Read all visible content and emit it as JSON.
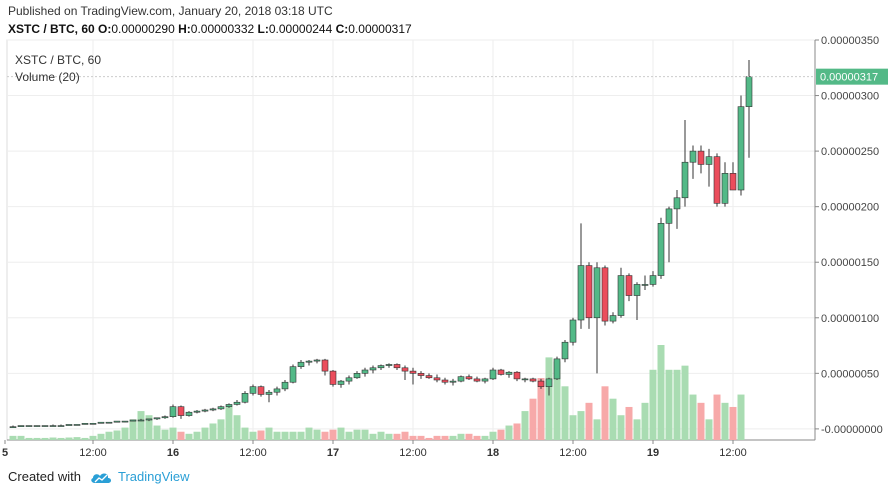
{
  "header": {
    "published": "Published on TradingView.com, January 20, 2018 03:18 UTC",
    "symbol": "XSTC / BTC, 60",
    "ohlc": [
      {
        "k": "O:",
        "v": "0.00000290"
      },
      {
        "k": "H:",
        "v": "0.00000332"
      },
      {
        "k": "L:",
        "v": "0.00000244"
      },
      {
        "k": "C:",
        "v": "0.00000317"
      }
    ]
  },
  "legend": {
    "title": "XSTC / BTC, 60",
    "volume": "Volume (20)"
  },
  "footer": {
    "created_with": "Created with",
    "brand": "TradingView"
  },
  "colors": {
    "up": "#53b987",
    "down": "#eb4d5c",
    "vol_up": "#a9dcb2",
    "vol_down": "#f7a9a9",
    "price_tag": "#53b987",
    "grid": "#eeeeee"
  },
  "chart_data": {
    "type": "candlestick",
    "title": "XSTC / BTC, 60",
    "ylim": [
      -1e-07,
      3.5e-06
    ],
    "y_ticks": [
      "0.00000350",
      "0.00000300",
      "0.00000250",
      "0.00000200",
      "0.00000150",
      "0.00000100",
      "0.00000050",
      "-0.00000000"
    ],
    "x_ticks": [
      {
        "i": -1,
        "label": "5"
      },
      {
        "i": 10,
        "label": "12:00"
      },
      {
        "i": 20,
        "label": "16"
      },
      {
        "i": 30,
        "label": "12:00"
      },
      {
        "i": 40,
        "label": "17"
      },
      {
        "i": 50,
        "label": "12:00"
      },
      {
        "i": 60,
        "label": "18"
      },
      {
        "i": 70,
        "label": "12:00"
      },
      {
        "i": 80,
        "label": "19"
      },
      {
        "i": 90,
        "label": "12:00"
      }
    ],
    "last_price": "0.00000317",
    "candles": [
      [
        2e-08,
        3e-08,
        2e-08,
        2e-08
      ],
      [
        2e-08,
        3e-08,
        2e-08,
        3e-08
      ],
      [
        3e-08,
        3e-08,
        2e-08,
        3e-08
      ],
      [
        3e-08,
        3e-08,
        2e-08,
        3e-08
      ],
      [
        3e-08,
        3e-08,
        2e-08,
        3e-08
      ],
      [
        3e-08,
        4e-08,
        3e-08,
        3e-08
      ],
      [
        3e-08,
        4e-08,
        3e-08,
        3e-08
      ],
      [
        3e-08,
        4e-08,
        3e-08,
        4e-08
      ],
      [
        4e-08,
        4e-08,
        3e-08,
        4e-08
      ],
      [
        4e-08,
        5e-08,
        4e-08,
        5e-08
      ],
      [
        5e-08,
        5e-08,
        4e-08,
        5e-08
      ],
      [
        5e-08,
        6e-08,
        5e-08,
        6e-08
      ],
      [
        6e-08,
        6e-08,
        5e-08,
        6e-08
      ],
      [
        6e-08,
        7e-08,
        6e-08,
        7e-08
      ],
      [
        7e-08,
        7e-08,
        6e-08,
        7e-08
      ],
      [
        7e-08,
        8e-08,
        7e-08,
        8e-08
      ],
      [
        8e-08,
        9e-08,
        7e-08,
        8e-08
      ],
      [
        8e-08,
        9e-08,
        7e-08,
        9e-08
      ],
      [
        9e-08,
        1e-07,
        8e-08,
        1e-07
      ],
      [
        1e-07,
        1.2e-07,
        9e-08,
        1.1e-07
      ],
      [
        1.1e-07,
        2.2e-07,
        1e-07,
        2e-07
      ],
      [
        2e-07,
        2.1e-07,
        9e-08,
        1.2e-07
      ],
      [
        1.2e-07,
        1.6e-07,
        1.1e-07,
        1.5e-07
      ],
      [
        1.5e-07,
        1.7e-07,
        1.4e-07,
        1.6e-07
      ],
      [
        1.6e-07,
        1.8e-07,
        1.5e-07,
        1.7e-07
      ],
      [
        1.7e-07,
        1.9e-07,
        1.6e-07,
        1.8e-07
      ],
      [
        1.8e-07,
        2.1e-07,
        1.7e-07,
        2e-07
      ],
      [
        2e-07,
        2.3e-07,
        1.9e-07,
        2.2e-07
      ],
      [
        2.2e-07,
        2.6e-07,
        2.1e-07,
        2.4e-07
      ],
      [
        2.4e-07,
        3.4e-07,
        2.3e-07,
        3.2e-07
      ],
      [
        3.2e-07,
        4e-07,
        3e-07,
        3.8e-07
      ],
      [
        3.8e-07,
        3.9e-07,
        2.9e-07,
        3.1e-07
      ],
      [
        3.1e-07,
        3.5e-07,
        2.4e-07,
        3.3e-07
      ],
      [
        3.3e-07,
        3.8e-07,
        3e-07,
        3.6e-07
      ],
      [
        3.6e-07,
        4.4e-07,
        3.4e-07,
        4.2e-07
      ],
      [
        4.2e-07,
        5.8e-07,
        4.1e-07,
        5.6e-07
      ],
      [
        5.6e-07,
        6.2e-07,
        5.4e-07,
        6e-07
      ],
      [
        6e-07,
        6.2e-07,
        5.7e-07,
        6.1e-07
      ],
      [
        6.1e-07,
        6.3e-07,
        5.9e-07,
        6.2e-07
      ],
      [
        6.2e-07,
        6.3e-07,
        4.8e-07,
        5.2e-07
      ],
      [
        5.2e-07,
        5.3e-07,
        3.8e-07,
        4e-07
      ],
      [
        4e-07,
        4.4e-07,
        3.7e-07,
        4.3e-07
      ],
      [
        4.3e-07,
        4.8e-07,
        4e-07,
        4.6e-07
      ],
      [
        4.6e-07,
        5.2e-07,
        4.5e-07,
        5e-07
      ],
      [
        5e-07,
        5.5e-07,
        4.7e-07,
        5.3e-07
      ],
      [
        5.3e-07,
        5.7e-07,
        5e-07,
        5.5e-07
      ],
      [
        5.5e-07,
        5.8e-07,
        5.3e-07,
        5.7e-07
      ],
      [
        5.7e-07,
        5.9e-07,
        5.5e-07,
        5.8e-07
      ],
      [
        5.8e-07,
        5.9e-07,
        5.3e-07,
        5.5e-07
      ],
      [
        5.5e-07,
        5.7e-07,
        4.4e-07,
        5.2e-07
      ],
      [
        5.2e-07,
        5.5e-07,
        4e-07,
        5e-07
      ],
      [
        5e-07,
        5.2e-07,
        4.5e-07,
        4.8e-07
      ],
      [
        4.8e-07,
        5e-07,
        4.5e-07,
        4.6e-07
      ],
      [
        4.6e-07,
        4.9e-07,
        4.2e-07,
        4.4e-07
      ],
      [
        4.4e-07,
        4.6e-07,
        4e-07,
        4.2e-07
      ],
      [
        4.2e-07,
        4.5e-07,
        3.9e-07,
        4.3e-07
      ],
      [
        4.3e-07,
        4.8e-07,
        4.2e-07,
        4.7e-07
      ],
      [
        4.7e-07,
        4.9e-07,
        4.4e-07,
        4.5e-07
      ],
      [
        4.5e-07,
        4.7e-07,
        4.2e-07,
        4.3e-07
      ],
      [
        4.3e-07,
        4.6e-07,
        4.1e-07,
        4.5e-07
      ],
      [
        4.5e-07,
        5.5e-07,
        4.4e-07,
        5.3e-07
      ],
      [
        5.3e-07,
        5.4e-07,
        4.8e-07,
        4.9e-07
      ],
      [
        4.9e-07,
        5.2e-07,
        4.6e-07,
        5.1e-07
      ],
      [
        5.1e-07,
        5.2e-07,
        4.3e-07,
        4.5e-07
      ],
      [
        4.5e-07,
        4.6e-07,
        4.2e-07,
        4.5e-07
      ],
      [
        4.5e-07,
        4.6e-07,
        4.2e-07,
        4.3e-07
      ],
      [
        4.3e-07,
        4.5e-07,
        3.6e-07,
        3.8e-07
      ],
      [
        3.8e-07,
        4.6e-07,
        3e-07,
        4.5e-07
      ],
      [
        4.5e-07,
        6.5e-07,
        4.4e-07,
        6.3e-07
      ],
      [
        6.3e-07,
        8e-07,
        6e-07,
        7.8e-07
      ],
      [
        7.8e-07,
        1e-06,
        7.5e-07,
        9.8e-07
      ],
      [
        9.8e-07,
        1.85e-06,
        9e-07,
        1.47e-06
      ],
      [
        1.47e-06,
        1.5e-06,
        9e-07,
        1e-06
      ],
      [
        1e-06,
        1.5e-06,
        5e-07,
        1.45e-06
      ],
      [
        1.45e-06,
        1.47e-06,
        9.3e-07,
        9.7e-07
      ],
      [
        9.7e-07,
        1.05e-06,
        9.5e-07,
        1.02e-06
      ],
      [
        1.02e-06,
        1.45e-06,
        1e-06,
        1.38e-06
      ],
      [
        1.38e-06,
        1.4e-06,
        1.15e-06,
        1.2e-06
      ],
      [
        1.2e-06,
        1.32e-06,
        9.8e-07,
        1.3e-06
      ],
      [
        1.3e-06,
        1.38e-06,
        1.25e-06,
        1.3e-06
      ],
      [
        1.3e-06,
        1.42e-06,
        1.28e-06,
        1.38e-06
      ],
      [
        1.38e-06,
        1.9e-06,
        1.35e-06,
        1.85e-06
      ],
      [
        1.85e-06,
        2e-06,
        1.5e-06,
        1.98e-06
      ],
      [
        1.98e-06,
        2.15e-06,
        1.8e-06,
        2.08e-06
      ],
      [
        2.08e-06,
        2.78e-06,
        2e-06,
        2.4e-06
      ],
      [
        2.4e-06,
        2.55e-06,
        2.25e-06,
        2.5e-06
      ],
      [
        2.5e-06,
        2.55e-06,
        2.3e-06,
        2.38e-06
      ],
      [
        2.38e-06,
        2.52e-06,
        2.18e-06,
        2.45e-06
      ],
      [
        2.45e-06,
        2.48e-06,
        2e-06,
        2.03e-06
      ],
      [
        2.03e-06,
        2.4e-06,
        2e-06,
        2.3e-06
      ],
      [
        2.3e-06,
        2.4e-06,
        2.15e-06,
        2.15e-06
      ],
      [
        2.15e-06,
        3e-06,
        2.1e-06,
        2.9e-06
      ],
      [
        2.9e-06,
        3.32e-06,
        2.44e-06,
        3.17e-06
      ]
    ],
    "volumes": [
      1,
      1,
      0.5,
      0.5,
      0.5,
      0.6,
      0.5,
      0.6,
      0.7,
      0.5,
      1,
      1.5,
      2,
      2.3,
      3,
      5,
      7,
      6,
      3.5,
      2.5,
      3,
      2,
      1.5,
      2,
      3,
      4,
      5,
      8,
      6,
      3,
      2,
      2.3,
      3,
      2,
      2,
      2,
      2,
      3,
      2.5,
      2,
      2.5,
      3,
      2,
      2.5,
      2.5,
      1.5,
      2,
      1.5,
      1.5,
      2,
      1,
      1,
      0.5,
      1,
      1,
      1,
      1.5,
      1.5,
      1,
      1,
      2,
      2.5,
      3.5,
      4,
      7,
      10,
      15,
      20,
      19,
      13,
      6,
      7,
      9,
      5,
      13,
      10,
      6,
      8,
      5,
      9,
      17,
      23,
      17,
      17,
      18,
      11,
      9,
      5,
      11,
      9,
      8,
      11
    ]
  }
}
